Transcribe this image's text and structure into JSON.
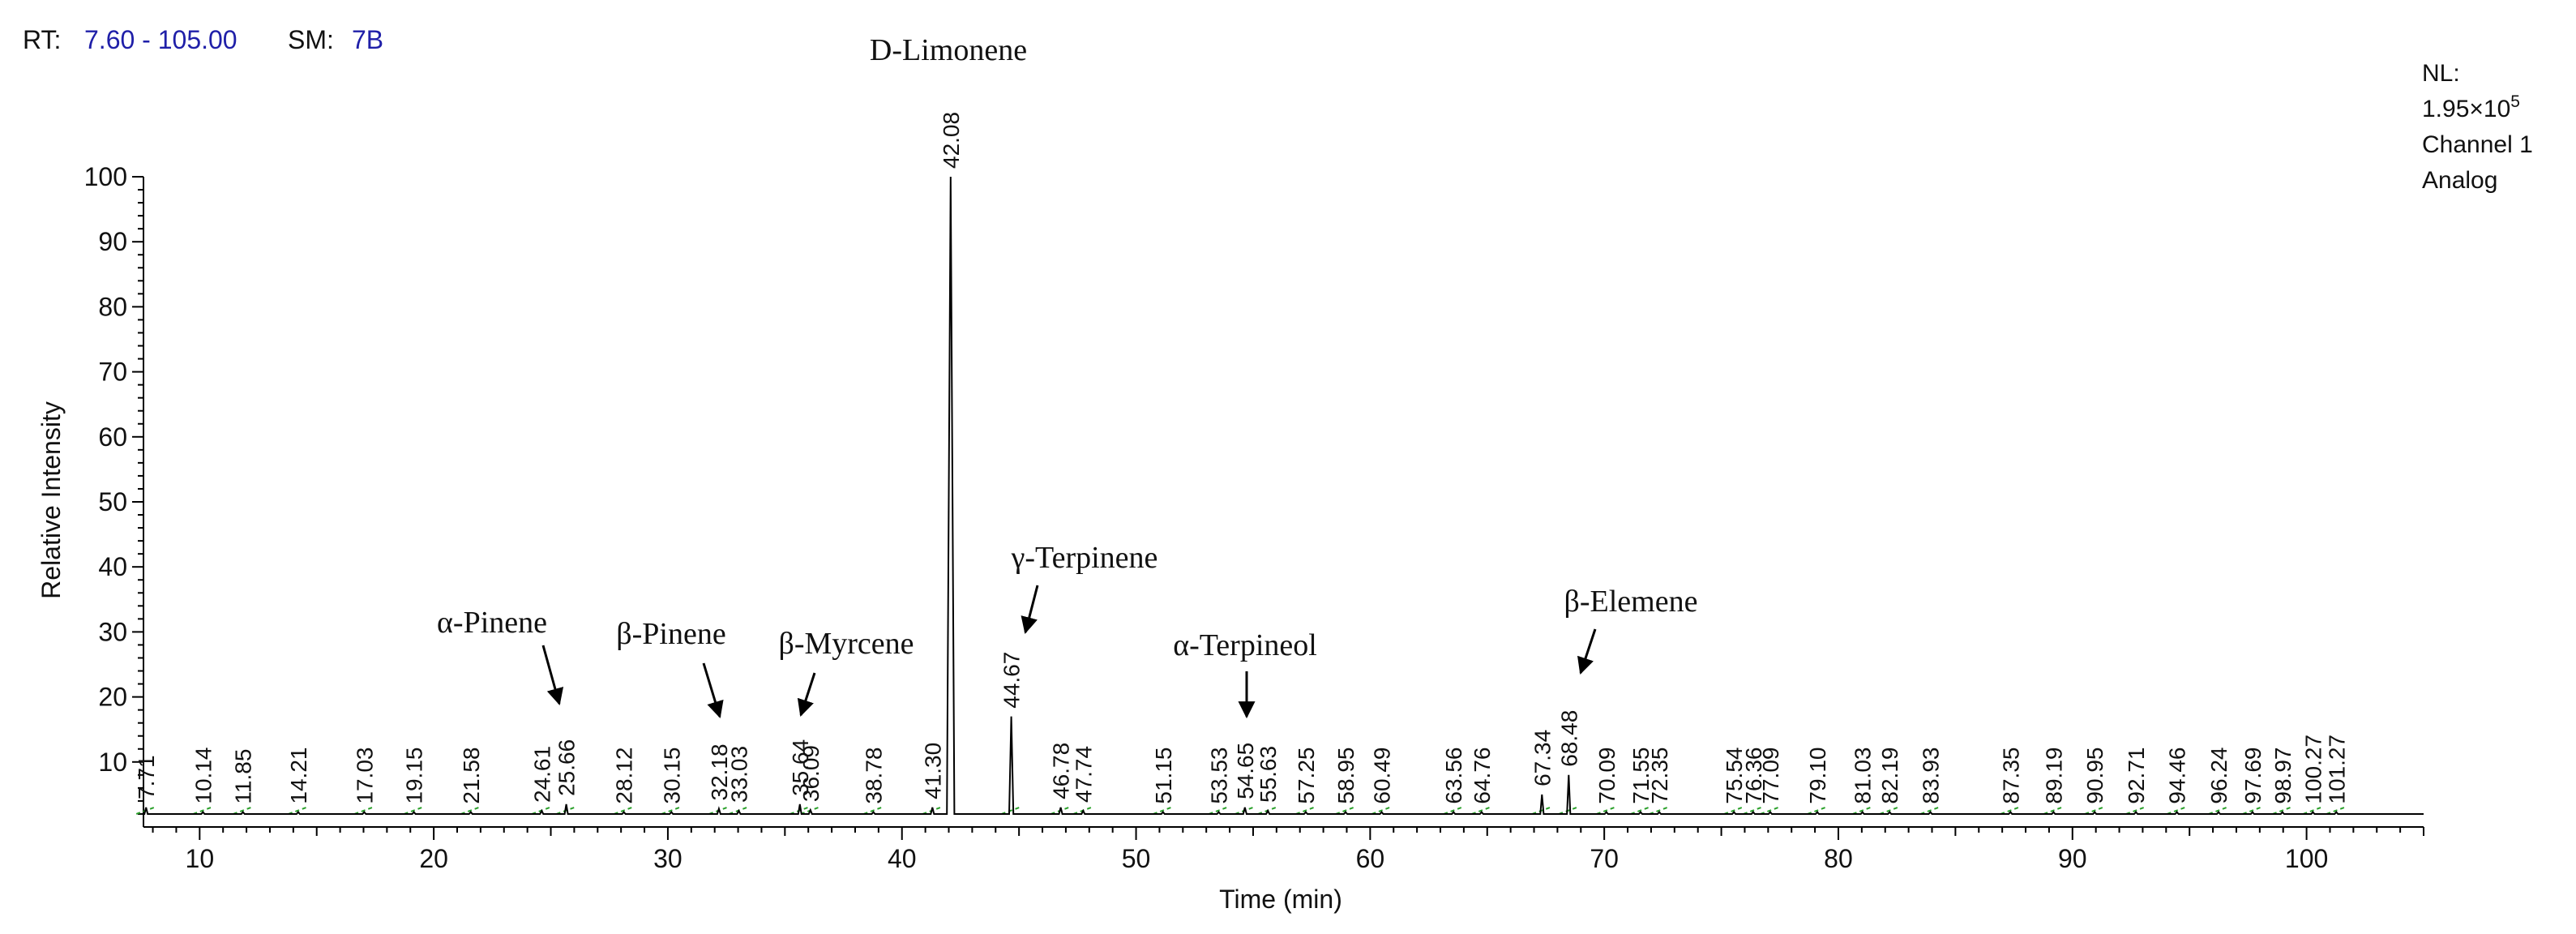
{
  "header": {
    "rt_label": "RT:",
    "rt_value": "7.60 - 105.00",
    "sm_label": "SM:",
    "sm_value": "7B"
  },
  "nl": {
    "line1": "NL:",
    "line2_mantissa": "1.95×10",
    "line2_exp": "5",
    "line3": "Channel 1",
    "line4": "Analog"
  },
  "colors": {
    "trace": "#000000",
    "header_value": "#1f1fa8",
    "baseline_marker": "#2aa02a"
  },
  "chart_data": {
    "type": "line",
    "xlabel": "Time (min)",
    "ylabel": "Relative Intensity",
    "xlim": [
      7.6,
      105.0
    ],
    "ylim": [
      0,
      100
    ],
    "x_ticks": [
      10,
      20,
      30,
      40,
      50,
      60,
      70,
      80,
      90,
      100
    ],
    "y_ticks": [
      10,
      20,
      30,
      40,
      50,
      60,
      70,
      80,
      90,
      100
    ],
    "baseline_y": 2,
    "peaks": [
      {
        "rt": 7.71,
        "label": "7.71",
        "height": 3
      },
      {
        "rt": 10.14,
        "label": "10.14",
        "height": 2.3
      },
      {
        "rt": 11.85,
        "label": "11.85",
        "height": 2.3
      },
      {
        "rt": 14.21,
        "label": "14.21",
        "height": 2.3
      },
      {
        "rt": 17.03,
        "label": "17.03",
        "height": 2.3
      },
      {
        "rt": 19.15,
        "label": "19.15",
        "height": 2.3
      },
      {
        "rt": 21.58,
        "label": "21.58",
        "height": 2.3
      },
      {
        "rt": 24.61,
        "label": "24.61",
        "height": 2.5
      },
      {
        "rt": 25.66,
        "label": "25.66",
        "height": 3.5
      },
      {
        "rt": 28.12,
        "label": "28.12",
        "height": 2.3
      },
      {
        "rt": 30.15,
        "label": "30.15",
        "height": 2.3
      },
      {
        "rt": 32.18,
        "label": "32.18",
        "height": 2.8
      },
      {
        "rt": 33.03,
        "label": "33.03",
        "height": 2.5
      },
      {
        "rt": 35.64,
        "label": "35.64",
        "height": 3.5
      },
      {
        "rt": 36.09,
        "label": "36.09",
        "height": 2.6
      },
      {
        "rt": 38.78,
        "label": "38.78",
        "height": 2.3
      },
      {
        "rt": 41.3,
        "label": "41.30",
        "height": 3
      },
      {
        "rt": 42.08,
        "label": "42.08",
        "height": 100
      },
      {
        "rt": 44.67,
        "label": "44.67",
        "height": 17
      },
      {
        "rt": 46.78,
        "label": "46.78",
        "height": 3
      },
      {
        "rt": 47.74,
        "label": "47.74",
        "height": 2.5
      },
      {
        "rt": 51.15,
        "label": "51.15",
        "height": 2.3
      },
      {
        "rt": 53.53,
        "label": "53.53",
        "height": 2.3
      },
      {
        "rt": 54.65,
        "label": "54.65",
        "height": 3
      },
      {
        "rt": 55.63,
        "label": "55.63",
        "height": 2.5
      },
      {
        "rt": 57.25,
        "label": "57.25",
        "height": 2.3
      },
      {
        "rt": 58.95,
        "label": "58.95",
        "height": 2.3
      },
      {
        "rt": 60.49,
        "label": "60.49",
        "height": 2.3
      },
      {
        "rt": 63.56,
        "label": "63.56",
        "height": 2.3
      },
      {
        "rt": 64.76,
        "label": "64.76",
        "height": 2.3
      },
      {
        "rt": 67.34,
        "label": "67.34",
        "height": 5
      },
      {
        "rt": 68.48,
        "label": "68.48",
        "height": 8
      },
      {
        "rt": 70.09,
        "label": "70.09",
        "height": 2.3
      },
      {
        "rt": 71.55,
        "label": "71.55",
        "height": 2.3
      },
      {
        "rt": 72.35,
        "label": "72.35",
        "height": 2.3
      },
      {
        "rt": 75.54,
        "label": "75.54",
        "height": 2.3
      },
      {
        "rt": 76.36,
        "label": "76.36",
        "height": 2.3
      },
      {
        "rt": 77.09,
        "label": "77.09",
        "height": 2.3
      },
      {
        "rt": 79.1,
        "label": "79.10",
        "height": 2.3
      },
      {
        "rt": 81.03,
        "label": "81.03",
        "height": 2.3
      },
      {
        "rt": 82.19,
        "label": "82.19",
        "height": 2.3
      },
      {
        "rt": 83.93,
        "label": "83.93",
        "height": 2.3
      },
      {
        "rt": 87.35,
        "label": "87.35",
        "height": 2.3
      },
      {
        "rt": 89.19,
        "label": "89.19",
        "height": 2.3
      },
      {
        "rt": 90.95,
        "label": "90.95",
        "height": 2.3
      },
      {
        "rt": 92.71,
        "label": "92.71",
        "height": 2.3
      },
      {
        "rt": 94.46,
        "label": "94.46",
        "height": 2.3
      },
      {
        "rt": 96.24,
        "label": "96.24",
        "height": 2.3
      },
      {
        "rt": 97.69,
        "label": "97.69",
        "height": 2.3
      },
      {
        "rt": 98.97,
        "label": "98.97",
        "height": 2.3
      },
      {
        "rt": 100.27,
        "label": "100.27",
        "height": 2.3
      },
      {
        "rt": 101.27,
        "label": "101.27",
        "height": 2.3
      }
    ],
    "annotations": [
      {
        "text": "D-Limonene",
        "rt": 42.08
      },
      {
        "text": "α-Pinene",
        "rt": 25.66
      },
      {
        "text": "β-Pinene",
        "rt": 32.18
      },
      {
        "text": "β-Myrcene",
        "rt": 35.64
      },
      {
        "text": "γ-Terpinene",
        "rt": 44.67
      },
      {
        "text": "α-Terpineol",
        "rt": 54.65
      },
      {
        "text": "β-Elemene",
        "rt": 68.48
      }
    ]
  }
}
